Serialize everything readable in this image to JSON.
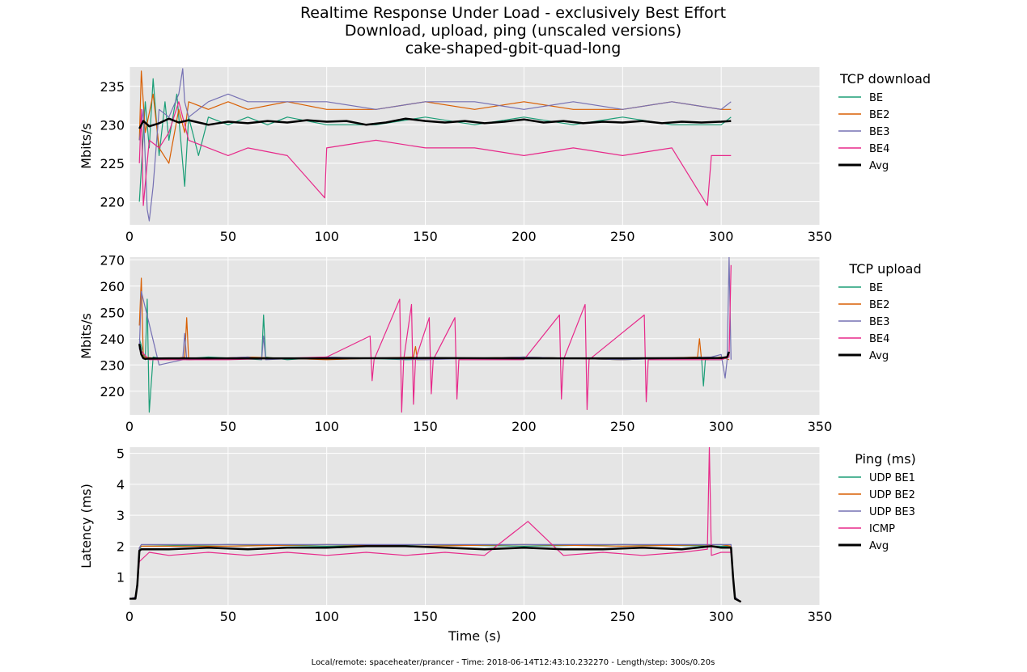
{
  "title": {
    "line1": "Realtime Response Under Load - exclusively Best Effort",
    "line2": "Download, upload, ping (unscaled versions)",
    "line3": "cake-shaped-gbit-quad-long"
  },
  "footer": "Local/remote: spaceheater/prancer - Time: 2018-06-14T12:43:10.232270 - Length/step: 300s/0.20s",
  "colors": {
    "BE": "#1b9e77",
    "BE2": "#d95f02",
    "BE3": "#7570b3",
    "BE4": "#e7298a",
    "Avg": "#000000",
    "panel_bg": "#e5e5e5",
    "grid": "#ffffff"
  },
  "chart_data": [
    {
      "type": "line",
      "xlabel": "",
      "ylabel": "Mbits/s",
      "xlim": [
        0,
        350
      ],
      "ylim": [
        217,
        237.5
      ],
      "xticks": [
        "0",
        "50",
        "100",
        "150",
        "200",
        "250",
        "300",
        "350"
      ],
      "yticks": [
        "220",
        "225",
        "230",
        "235"
      ],
      "grid": true,
      "legend": {
        "title": "TCP download",
        "placement": "right"
      },
      "series": [
        {
          "name": "BE",
          "color": "#1b9e77",
          "x": [
            5,
            8,
            10,
            12,
            15,
            18,
            20,
            24,
            28,
            30,
            35,
            40,
            50,
            60,
            70,
            80,
            100,
            125,
            150,
            175,
            200,
            225,
            250,
            275,
            300,
            305
          ],
          "values": [
            220,
            233,
            227,
            236,
            226,
            233,
            228,
            234,
            222,
            231,
            226,
            231,
            230,
            231,
            230,
            231,
            230,
            230,
            231,
            230,
            231,
            230,
            231,
            230,
            230,
            231
          ]
        },
        {
          "name": "BE2",
          "color": "#d95f02",
          "x": [
            5,
            6,
            8,
            12,
            15,
            20,
            25,
            28,
            30,
            40,
            50,
            60,
            80,
            100,
            125,
            150,
            175,
            200,
            225,
            250,
            275,
            300,
            305
          ],
          "values": [
            228,
            237,
            229,
            234,
            227,
            225,
            232,
            229,
            233,
            232,
            233,
            232,
            233,
            232,
            232,
            233,
            232,
            233,
            232,
            232,
            233,
            232,
            232
          ]
        },
        {
          "name": "BE3",
          "color": "#7570b3",
          "x": [
            5,
            7,
            9,
            10,
            12,
            15,
            20,
            25,
            27,
            28,
            30,
            40,
            50,
            60,
            80,
            100,
            125,
            150,
            175,
            200,
            225,
            250,
            275,
            300,
            305
          ],
          "values": [
            228,
            232,
            219,
            217.5,
            222,
            232,
            231,
            234,
            237.3,
            233,
            231,
            233,
            234,
            233,
            233,
            233,
            232,
            233,
            233,
            232,
            233,
            232,
            233,
            232,
            233
          ]
        },
        {
          "name": "BE4",
          "color": "#e7298a",
          "x": [
            5,
            6,
            7,
            10,
            15,
            20,
            25,
            30,
            40,
            50,
            60,
            80,
            99,
            100,
            125,
            150,
            175,
            200,
            225,
            250,
            275,
            293,
            295,
            300,
            305
          ],
          "values": [
            225,
            232,
            219.5,
            228,
            227,
            229,
            233,
            228,
            227,
            226,
            227,
            226,
            220.5,
            227,
            228,
            227,
            227,
            226,
            227,
            226,
            227,
            219.5,
            226,
            226,
            226
          ]
        },
        {
          "name": "Avg",
          "color": "#000000",
          "x": [
            5,
            7,
            10,
            15,
            20,
            25,
            30,
            40,
            50,
            60,
            70,
            80,
            90,
            100,
            110,
            120,
            130,
            140,
            150,
            160,
            170,
            180,
            190,
            200,
            210,
            220,
            230,
            240,
            250,
            260,
            270,
            280,
            290,
            300,
            305
          ],
          "values": [
            229.5,
            230.5,
            229.8,
            230.2,
            230.8,
            230.3,
            230.6,
            230.0,
            230.4,
            230.2,
            230.5,
            230.3,
            230.6,
            230.4,
            230.5,
            230.0,
            230.3,
            230.8,
            230.5,
            230.3,
            230.5,
            230.2,
            230.4,
            230.7,
            230.3,
            230.5,
            230.2,
            230.4,
            230.3,
            230.5,
            230.2,
            230.4,
            230.3,
            230.4,
            230.5
          ]
        }
      ]
    },
    {
      "type": "line",
      "xlabel": "",
      "ylabel": "Mbits/s",
      "xlim": [
        0,
        350
      ],
      "ylim": [
        211,
        271
      ],
      "xticks": [
        "0",
        "50",
        "100",
        "150",
        "200",
        "250",
        "300",
        "350"
      ],
      "yticks": [
        "220",
        "230",
        "240",
        "250",
        "260",
        "270"
      ],
      "grid": true,
      "legend": {
        "title": "TCP upload",
        "placement": "right"
      },
      "series": [
        {
          "name": "BE",
          "color": "#1b9e77",
          "x": [
            5,
            8,
            9,
            10,
            12,
            20,
            40,
            67,
            68,
            69,
            80,
            100,
            140,
            200,
            250,
            290,
            291,
            292,
            300,
            304
          ],
          "values": [
            240,
            232,
            255,
            212,
            233,
            232,
            233,
            232,
            249,
            233,
            232,
            233,
            232,
            233,
            232,
            233,
            222,
            232,
            232,
            233
          ]
        },
        {
          "name": "BE2",
          "color": "#d95f02",
          "x": [
            5,
            6,
            7,
            20,
            28,
            29,
            30,
            60,
            100,
            144,
            145,
            146,
            200,
            250,
            288,
            289,
            290,
            300,
            304
          ],
          "values": [
            245,
            263,
            233,
            232,
            233,
            248,
            232,
            233,
            232,
            233,
            237,
            232,
            233,
            232,
            233,
            240,
            232,
            233,
            232
          ]
        },
        {
          "name": "BE3",
          "color": "#7570b3",
          "x": [
            5,
            6,
            15,
            27,
            28,
            29,
            60,
            67,
            68,
            69,
            100,
            150,
            200,
            250,
            295,
            300,
            302,
            303,
            304,
            305
          ],
          "values": [
            236,
            258,
            230,
            232,
            242,
            232,
            233,
            232,
            241,
            232,
            233,
            232,
            233,
            232,
            233,
            234,
            225,
            232,
            271,
            232
          ]
        },
        {
          "name": "BE4",
          "color": "#e7298a",
          "x": [
            5,
            10,
            50,
            100,
            122,
            123,
            124,
            137,
            138,
            139,
            143,
            144,
            145,
            152,
            153,
            154,
            165,
            166,
            167,
            200,
            218,
            219,
            220,
            231,
            232,
            233,
            261,
            262,
            263,
            300,
            304,
            305
          ],
          "values": [
            236,
            232,
            232,
            233,
            241,
            224,
            232,
            255,
            212,
            232,
            253,
            215,
            232,
            248,
            219,
            232,
            248,
            217,
            232,
            232,
            249,
            217,
            232,
            253,
            213,
            232,
            249,
            216,
            232,
            232,
            233,
            268
          ]
        },
        {
          "name": "Avg",
          "color": "#000000",
          "x": [
            5,
            6,
            7,
            8,
            10,
            20,
            50,
            100,
            150,
            200,
            250,
            300,
            303,
            304
          ],
          "values": [
            238,
            234,
            232.5,
            232.3,
            232.4,
            232.5,
            232.5,
            232.5,
            232.6,
            232.5,
            232.5,
            232.6,
            233,
            235
          ]
        }
      ]
    },
    {
      "type": "line",
      "xlabel": "Time (s)",
      "ylabel": "Latency (ms)",
      "xlim": [
        0,
        350
      ],
      "ylim": [
        0.1,
        5.2
      ],
      "xticks": [
        "0",
        "50",
        "100",
        "150",
        "200",
        "250",
        "300",
        "350"
      ],
      "yticks": [
        "1",
        "2",
        "3",
        "4",
        "5"
      ],
      "grid": true,
      "legend": {
        "title": "Ping (ms)",
        "placement": "right"
      },
      "series": [
        {
          "name": "UDP BE1",
          "color": "#1b9e77",
          "x": [
            0,
            3,
            4,
            5,
            6,
            50,
            100,
            150,
            200,
            250,
            300,
            305,
            306,
            307,
            310
          ],
          "values": [
            0.3,
            0.35,
            0.8,
            1.9,
            2.0,
            2.05,
            2.0,
            2.05,
            2.0,
            2.05,
            2.0,
            2.0,
            1.0,
            0.35,
            0.2
          ]
        },
        {
          "name": "UDP BE2",
          "color": "#d95f02",
          "x": [
            0,
            3,
            4,
            5,
            6,
            50,
            100,
            150,
            200,
            250,
            300,
            305,
            306,
            307,
            310
          ],
          "values": [
            0.3,
            0.35,
            0.8,
            1.95,
            2.0,
            2.0,
            2.05,
            2.0,
            2.05,
            2.0,
            2.05,
            2.0,
            1.0,
            0.35,
            0.2
          ]
        },
        {
          "name": "UDP BE3",
          "color": "#7570b3",
          "x": [
            0,
            3,
            4,
            5,
            6,
            50,
            100,
            150,
            200,
            250,
            300,
            305,
            306,
            307,
            310
          ],
          "values": [
            0.3,
            0.35,
            0.8,
            1.95,
            2.05,
            2.05,
            2.05,
            2.05,
            2.05,
            2.05,
            2.05,
            2.05,
            1.0,
            0.35,
            0.2
          ]
        },
        {
          "name": "ICMP",
          "color": "#e7298a",
          "x": [
            0,
            3,
            4,
            5,
            10,
            20,
            40,
            60,
            80,
            100,
            120,
            140,
            160,
            180,
            202,
            220,
            240,
            260,
            280,
            293,
            294,
            295,
            300,
            305,
            306,
            307,
            310
          ],
          "values": [
            0.3,
            0.3,
            0.7,
            1.5,
            1.8,
            1.7,
            1.8,
            1.7,
            1.8,
            1.7,
            1.8,
            1.7,
            1.8,
            1.7,
            2.8,
            1.7,
            1.8,
            1.7,
            1.8,
            1.9,
            5.2,
            1.7,
            1.8,
            1.8,
            1.0,
            0.3,
            0.2
          ]
        },
        {
          "name": "Avg",
          "color": "#000000",
          "x": [
            0,
            3,
            4,
            5,
            6,
            20,
            40,
            60,
            80,
            100,
            120,
            140,
            160,
            180,
            200,
            220,
            240,
            260,
            280,
            295,
            300,
            305,
            306,
            307,
            310
          ],
          "values": [
            0.3,
            0.3,
            0.75,
            1.85,
            1.9,
            1.9,
            1.95,
            1.9,
            1.95,
            1.95,
            2.0,
            2.0,
            1.95,
            1.9,
            1.95,
            1.9,
            1.9,
            1.95,
            1.9,
            2.0,
            1.95,
            1.95,
            1.0,
            0.3,
            0.2
          ]
        }
      ]
    }
  ]
}
